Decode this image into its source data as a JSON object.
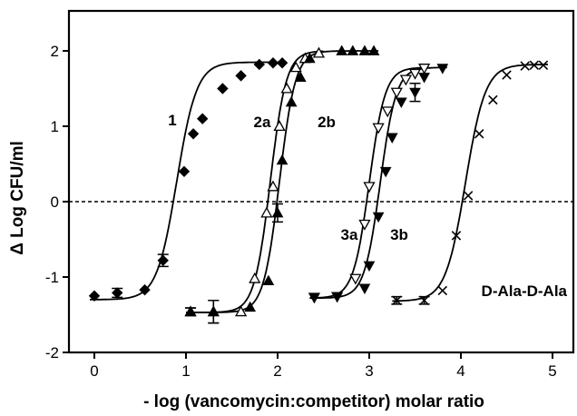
{
  "chart_data": {
    "type": "scatter",
    "xlabel": "- log (vancomycin:competitor) molar ratio",
    "ylabel": "Δ Log CFU/ml",
    "xlim": [
      -0.3,
      5.1
    ],
    "ylim": [
      -2,
      2.35
    ],
    "xticks": [
      "0",
      "1",
      "2",
      "3",
      "4",
      "5"
    ],
    "yticks": [
      "-2",
      "-1",
      "0",
      "1",
      "2"
    ],
    "reference_line": {
      "y": 0,
      "style": "dashed"
    },
    "series": [
      {
        "name": "1",
        "marker": "filled-diamond",
        "curve": {
          "bottom": -1.3,
          "top": 1.85,
          "ec50": 0.9,
          "slope": 4
        },
        "points": [
          {
            "x": 0.0,
            "y": -1.25
          },
          {
            "x": 0.25,
            "y": -1.21,
            "err": 0.06
          },
          {
            "x": 0.55,
            "y": -1.17
          },
          {
            "x": 0.75,
            "y": -0.78,
            "err": 0.08
          },
          {
            "x": 0.98,
            "y": 0.4
          },
          {
            "x": 1.08,
            "y": 0.9
          },
          {
            "x": 1.18,
            "y": 1.1
          },
          {
            "x": 1.4,
            "y": 1.5
          },
          {
            "x": 1.6,
            "y": 1.67
          },
          {
            "x": 1.8,
            "y": 1.82
          },
          {
            "x": 1.95,
            "y": 1.84
          },
          {
            "x": 2.05,
            "y": 1.84
          }
        ]
      },
      {
        "name": "2a",
        "marker": "open-triangle",
        "curve": {
          "bottom": -1.47,
          "top": 2.0,
          "ec50": 1.92,
          "slope": 5
        },
        "points": [
          {
            "x": 1.05,
            "y": -1.46,
            "err": 0.05
          },
          {
            "x": 1.3,
            "y": -1.46,
            "err": 0.15
          },
          {
            "x": 1.6,
            "y": -1.46
          },
          {
            "x": 1.75,
            "y": -1.02
          },
          {
            "x": 1.88,
            "y": -0.15
          },
          {
            "x": 1.95,
            "y": 0.2
          },
          {
            "x": 2.02,
            "y": 1.0
          },
          {
            "x": 2.1,
            "y": 1.5
          },
          {
            "x": 2.2,
            "y": 1.78
          },
          {
            "x": 2.3,
            "y": 1.9
          },
          {
            "x": 2.45,
            "y": 1.97
          }
        ]
      },
      {
        "name": "2b",
        "marker": "filled-triangle",
        "curve": {
          "bottom": -1.47,
          "top": 2.0,
          "ec50": 2.02,
          "slope": 5
        },
        "points": [
          {
            "x": 1.05,
            "y": -1.46,
            "err": 0.05
          },
          {
            "x": 1.3,
            "y": -1.46,
            "err": 0.15
          },
          {
            "x": 1.7,
            "y": -1.4
          },
          {
            "x": 1.9,
            "y": -1.05
          },
          {
            "x": 2.0,
            "y": -0.15,
            "err": 0.12
          },
          {
            "x": 2.05,
            "y": 0.55
          },
          {
            "x": 2.15,
            "y": 1.32
          },
          {
            "x": 2.25,
            "y": 1.65
          },
          {
            "x": 2.35,
            "y": 1.9
          },
          {
            "x": 2.7,
            "y": 2.0
          },
          {
            "x": 2.82,
            "y": 2.0
          },
          {
            "x": 2.95,
            "y": 2.0
          },
          {
            "x": 3.05,
            "y": 2.0
          }
        ]
      },
      {
        "name": "3a",
        "marker": "open-down-triangle",
        "curve": {
          "bottom": -1.28,
          "top": 1.78,
          "ec50": 3.0,
          "slope": 5
        },
        "points": [
          {
            "x": 2.4,
            "y": -1.27
          },
          {
            "x": 2.65,
            "y": -1.26
          },
          {
            "x": 2.85,
            "y": -1.02
          },
          {
            "x": 2.95,
            "y": -0.3
          },
          {
            "x": 3.0,
            "y": 0.2
          },
          {
            "x": 3.1,
            "y": 0.98
          },
          {
            "x": 3.2,
            "y": 1.2
          },
          {
            "x": 3.3,
            "y": 1.45
          },
          {
            "x": 3.4,
            "y": 1.62
          },
          {
            "x": 3.5,
            "y": 1.7
          },
          {
            "x": 3.6,
            "y": 1.77
          }
        ]
      },
      {
        "name": "3b",
        "marker": "filled-down-triangle",
        "curve": {
          "bottom": -1.28,
          "top": 1.78,
          "ec50": 3.12,
          "slope": 5
        },
        "points": [
          {
            "x": 2.4,
            "y": -1.27
          },
          {
            "x": 2.65,
            "y": -1.26
          },
          {
            "x": 2.95,
            "y": -1.15
          },
          {
            "x": 3.0,
            "y": -0.85
          },
          {
            "x": 3.1,
            "y": -0.2
          },
          {
            "x": 3.18,
            "y": 0.4
          },
          {
            "x": 3.25,
            "y": 0.85
          },
          {
            "x": 3.35,
            "y": 1.32
          },
          {
            "x": 3.5,
            "y": 1.45,
            "err": 0.12
          },
          {
            "x": 3.6,
            "y": 1.65
          },
          {
            "x": 3.8,
            "y": 1.77
          }
        ]
      },
      {
        "name": "D-Ala-D-Ala",
        "marker": "cross",
        "curve": {
          "bottom": -1.32,
          "top": 1.82,
          "ec50": 4.05,
          "slope": 4
        },
        "points": [
          {
            "x": 3.3,
            "y": -1.31,
            "err": 0.05
          },
          {
            "x": 3.6,
            "y": -1.31,
            "err": 0.05
          },
          {
            "x": 3.8,
            "y": -1.18
          },
          {
            "x": 3.95,
            "y": -0.45
          },
          {
            "x": 4.08,
            "y": 0.08
          },
          {
            "x": 4.2,
            "y": 0.9
          },
          {
            "x": 4.35,
            "y": 1.35
          },
          {
            "x": 4.5,
            "y": 1.68
          },
          {
            "x": 4.7,
            "y": 1.8
          },
          {
            "x": 4.8,
            "y": 1.81
          },
          {
            "x": 4.9,
            "y": 1.81
          }
        ]
      }
    ],
    "series_labels": [
      "1",
      "2a",
      "2b",
      "3a",
      "3b",
      "D-Ala-D-Ala"
    ]
  }
}
